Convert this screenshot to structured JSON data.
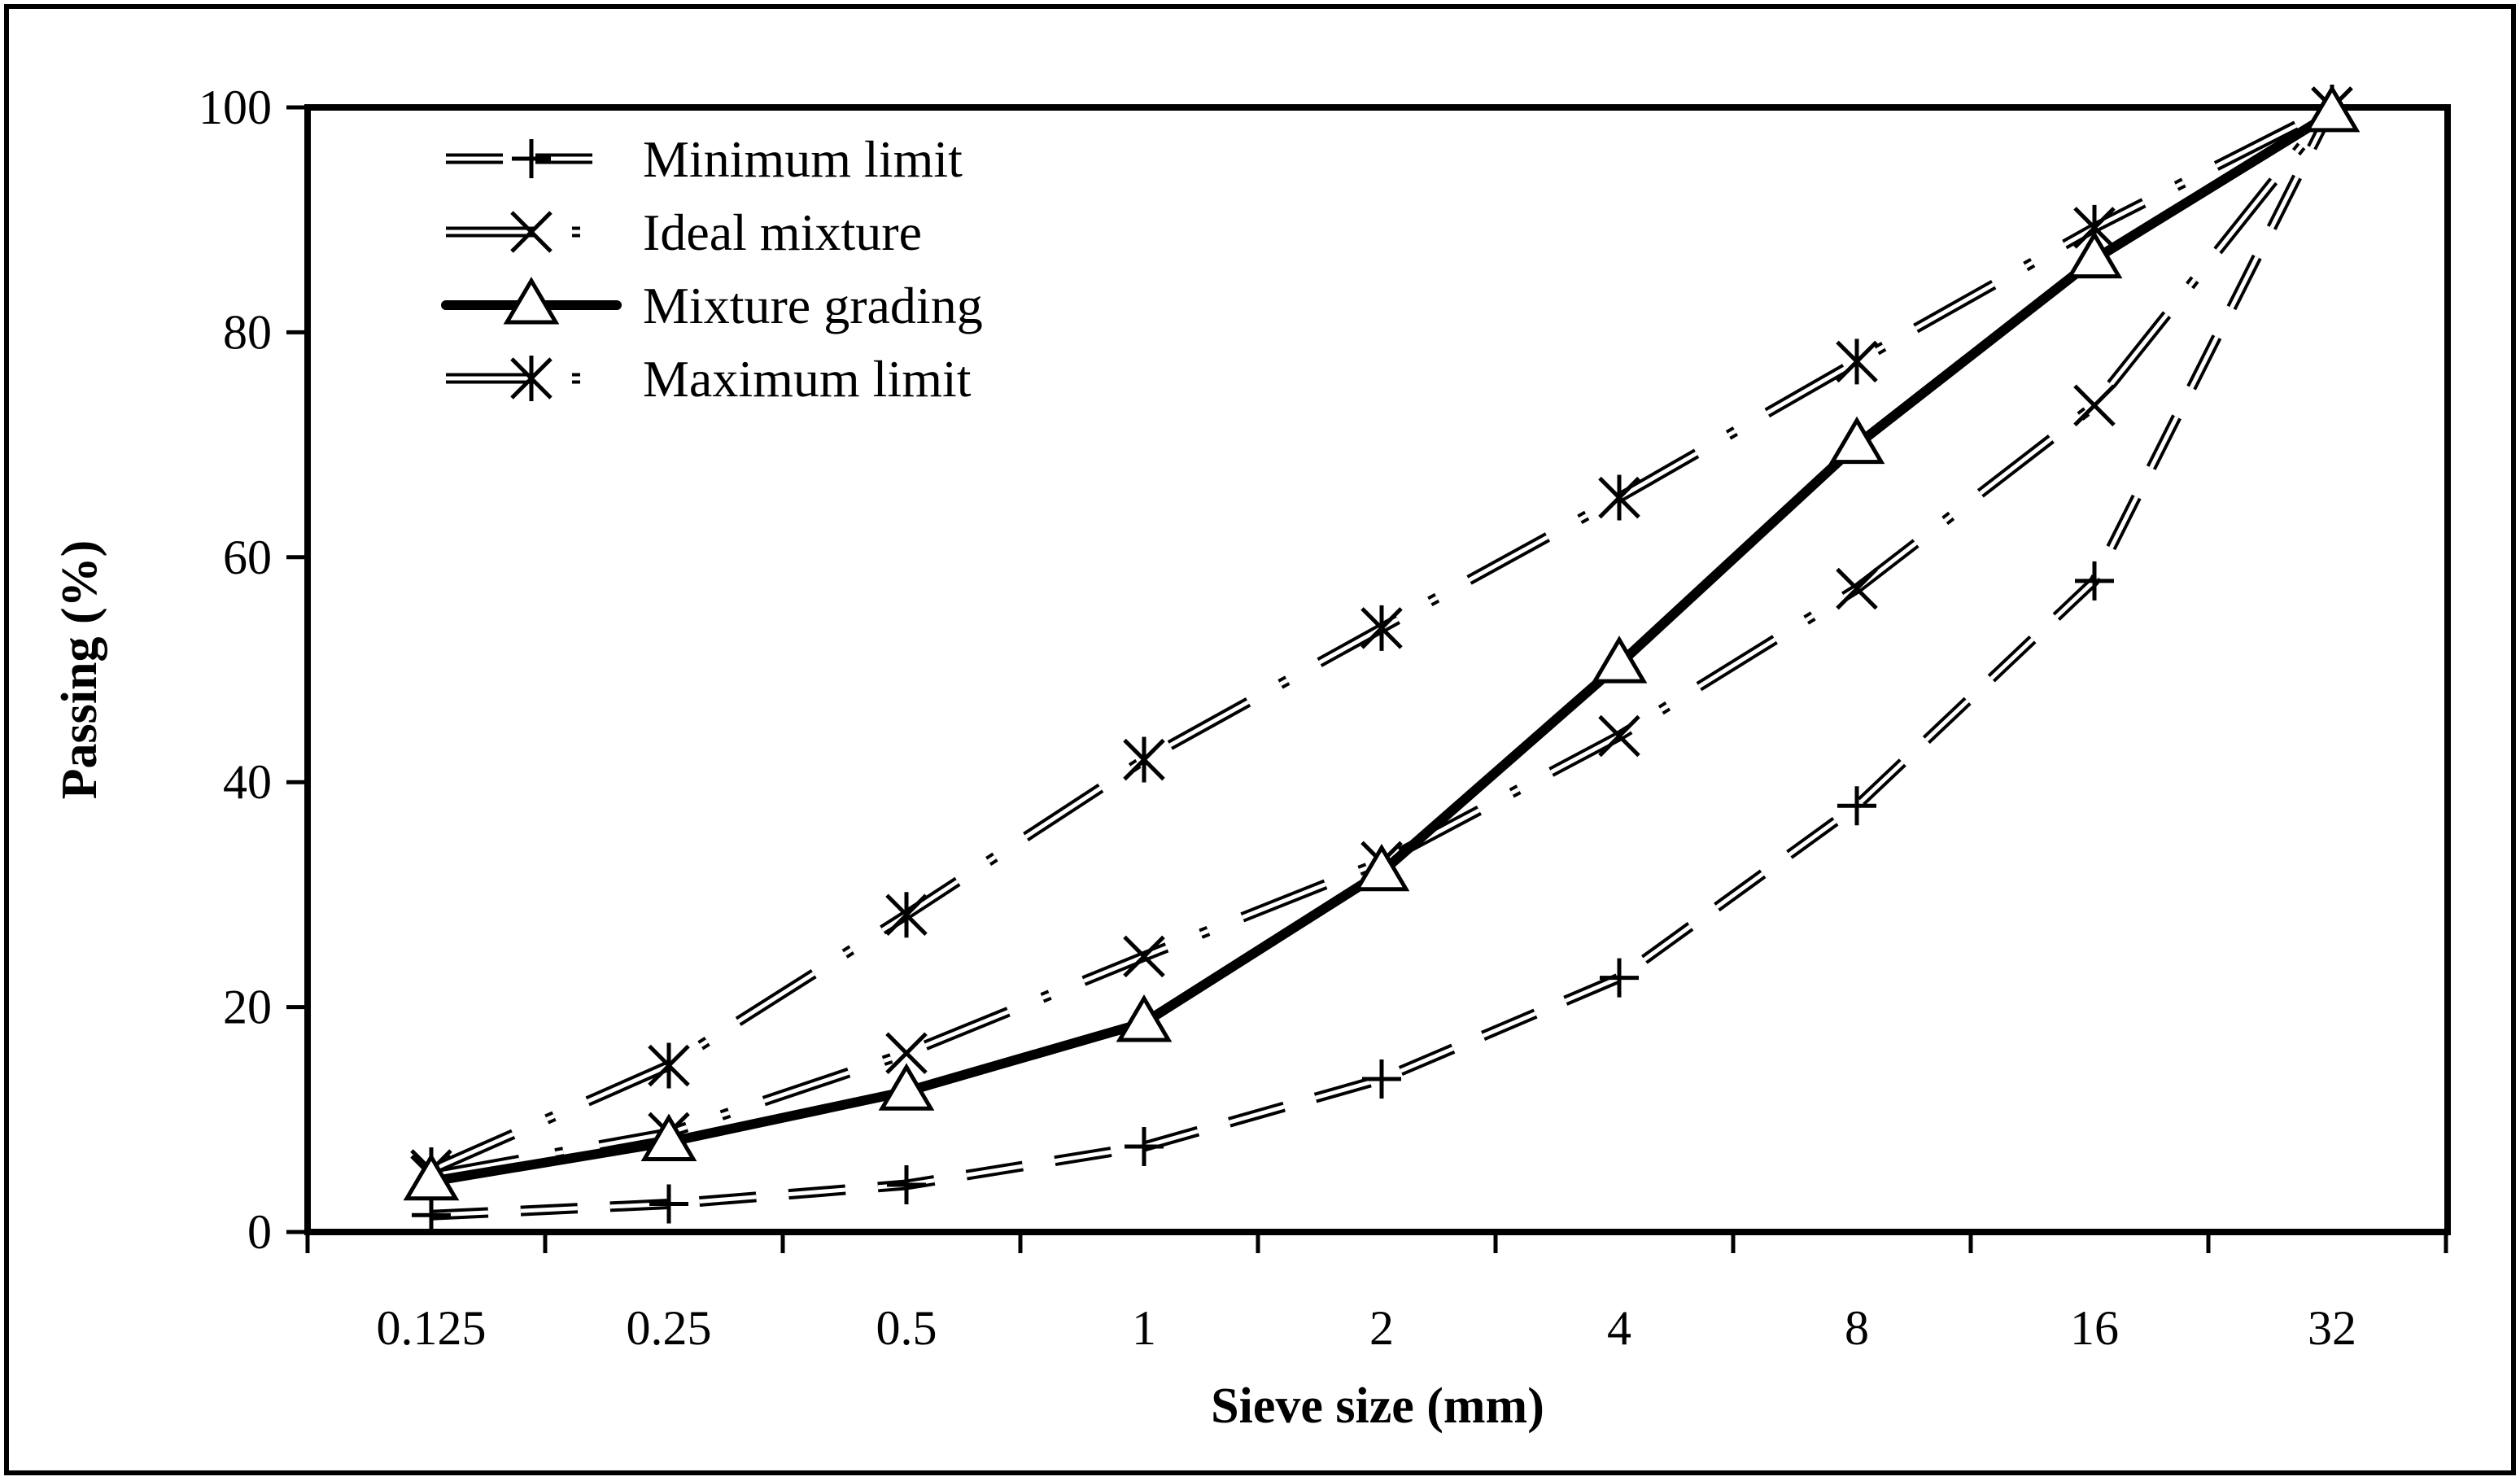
{
  "chart_data": {
    "type": "line",
    "title": "",
    "xlabel": "Sieve size (mm)",
    "ylabel": "Passing (%)",
    "categories": [
      "0.125",
      "0.25",
      "0.5",
      "1",
      "2",
      "4",
      "8",
      "16",
      "32"
    ],
    "ylim": [
      0,
      100
    ],
    "yticks": [
      "0",
      "20",
      "40",
      "60",
      "80",
      "100"
    ],
    "grid": false,
    "legend_position": "top-left",
    "series": [
      {
        "name": "Minimum limit",
        "style": "dash-plus",
        "marker": "plus",
        "values": [
          1.5,
          2.5,
          4.2,
          7.6,
          13.6,
          22.6,
          37.9,
          57.9,
          100
        ]
      },
      {
        "name": "Ideal mixture",
        "style": "dashdot-x",
        "marker": "x",
        "values": [
          5,
          8.8,
          15.9,
          24.5,
          32.9,
          44.1,
          57.2,
          73.5,
          100
        ]
      },
      {
        "name": "Mixture grading",
        "style": "solid-triangle",
        "marker": "triangle",
        "values": [
          4.5,
          8,
          12.5,
          18.6,
          32,
          50.5,
          70,
          86.5,
          99.5
        ]
      },
      {
        "name": "Maximum limit",
        "style": "dashdot-star",
        "marker": "star",
        "values": [
          5.5,
          14.8,
          28.2,
          42,
          53.7,
          65.3,
          77.4,
          89.3,
          100
        ]
      }
    ]
  }
}
